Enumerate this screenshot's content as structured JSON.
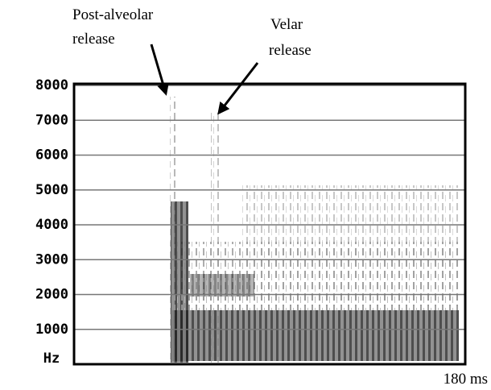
{
  "chart_data": {
    "type": "spectrogram",
    "annotations": [
      {
        "lines": [
          "Post-alveolar",
          "release"
        ]
      },
      {
        "lines": [
          "Velar",
          "release"
        ]
      }
    ],
    "y_label": "Hz",
    "ylim": [
      0,
      8000
    ],
    "yticks": [
      1000,
      2000,
      3000,
      4000,
      5000,
      6000,
      7000,
      8000
    ],
    "xlim": [
      0,
      180
    ],
    "xticks": [
      {
        "value": 180,
        "label": "180 ms"
      }
    ],
    "grid": true,
    "grid_color": "#777777"
  }
}
